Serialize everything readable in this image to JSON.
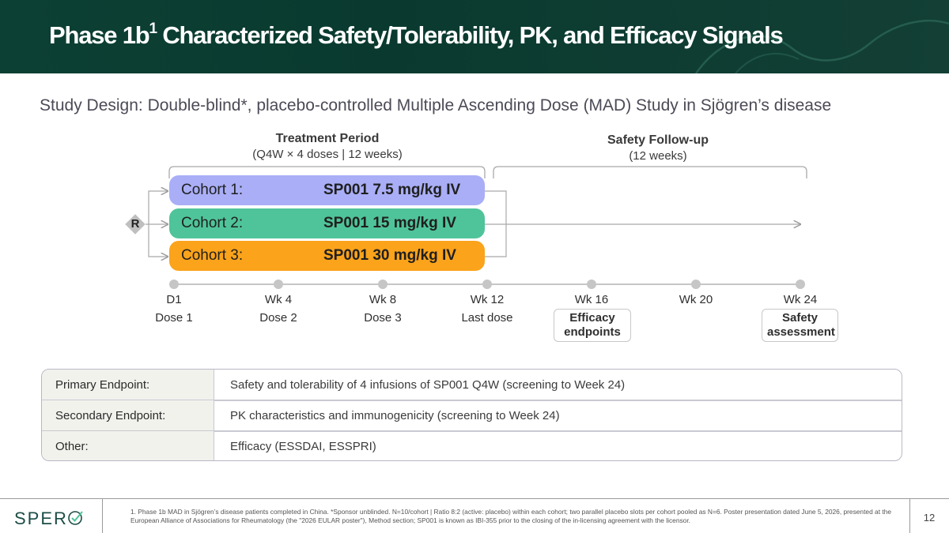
{
  "header": {
    "title_main": "Phase 1b",
    "title_sup": "1",
    "title_rest": " Characterized Safety/Tolerability, PK, and Efficacy Signals"
  },
  "subtitle": "Study Design: Double-blind*, placebo-controlled Multiple Ascending Dose (MAD) Study in Sjögren’s disease",
  "treatment_period": {
    "heading": "Treatment Period",
    "detail": "(Q4W × 4 doses | 12 weeks)"
  },
  "safety_followup": {
    "heading": "Safety Follow-up",
    "detail": "(12 weeks)"
  },
  "randomization_label": "R",
  "cohorts": [
    {
      "name": "Cohort 1:",
      "dose": "SP001 7.5 mg/kg IV",
      "color": "#a9aef6"
    },
    {
      "name": "Cohort 2:",
      "dose": "SP001 15 mg/kg IV",
      "color": "#4fc49a"
    },
    {
      "name": "Cohort 3:",
      "dose": "SP001 30 mg/kg IV",
      "color": "#fba31a"
    }
  ],
  "timeline": [
    {
      "week": "D1",
      "event": "Dose 1"
    },
    {
      "week": "Wk 4",
      "event": "Dose 2"
    },
    {
      "week": "Wk 8",
      "event": "Dose 3"
    },
    {
      "week": "Wk 12",
      "event": "Last dose"
    },
    {
      "week": "Wk 16",
      "event": ""
    },
    {
      "week": "Wk 20",
      "event": ""
    },
    {
      "week": "Wk 24",
      "event": ""
    }
  ],
  "assessments": {
    "efficacy_line1": "Efficacy",
    "efficacy_line2": "endpoints",
    "safety_line1": "Safety",
    "safety_line2": "assessment"
  },
  "endpoints": [
    {
      "label": "Primary Endpoint:",
      "value": "Safety and tolerability of 4 infusions of SP001 Q4W (screening to Week 24)"
    },
    {
      "label": "Secondary Endpoint:",
      "value": "PK characteristics and immunogenicity (screening to Week 24)"
    },
    {
      "label": "Other:",
      "value": "Efficacy (ESSDAI, ESSPRI)"
    }
  ],
  "footer": {
    "logo_text": "SPER",
    "footnote": "1. Phase 1b MAD in Sjögren’s disease patients completed in China. *Sponsor unblinded. N=10/cohort | Ratio 8:2  (active: placebo) within each cohort; two parallel placebo slots per cohort pooled as N=6. Poster presentation dated June 5, 2026, presented at the European Alliance of Associations for Rheumatology (the \"2026 EULAR poster\"), Method section; SP001 is known as IBI-355 prior to the closing of the in-licensing agreement with the licensor.",
    "page_number": "12"
  },
  "colors": {
    "header_bg": "#0d4034",
    "brand_green": "#1b4d45",
    "timeline_dot": "#c6c6c6"
  }
}
